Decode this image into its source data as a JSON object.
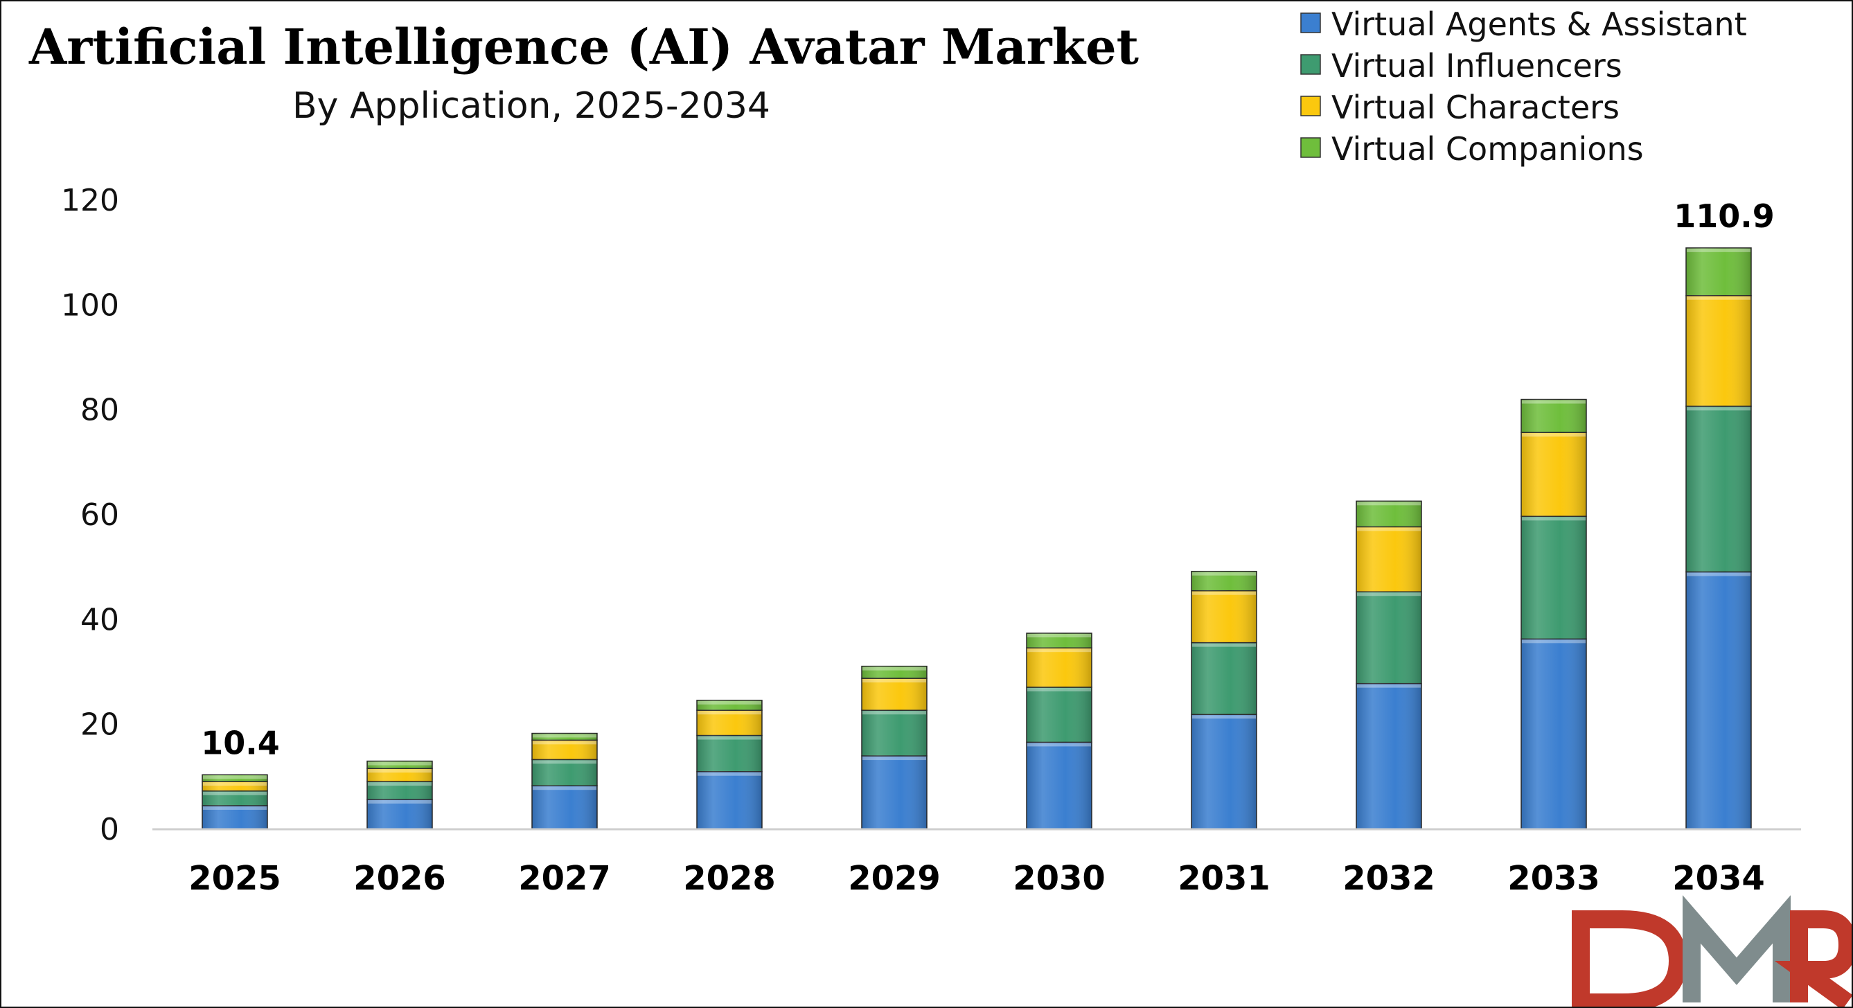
{
  "chart_data": {
    "type": "bar",
    "stacked": true,
    "title": "Artificial Intelligence (AI) Avatar Market",
    "subtitle": "By Application, 2025-2034",
    "xlabel": "",
    "ylabel": "",
    "categories": [
      "2025",
      "2026",
      "2027",
      "2028",
      "2029",
      "2030",
      "2031",
      "2032",
      "2033",
      "2034"
    ],
    "ylim": [
      0,
      120
    ],
    "yticks": [
      0,
      20,
      40,
      60,
      80,
      100,
      120
    ],
    "grid": false,
    "legend": "top-right",
    "series": [
      {
        "name": "Virtual Agents & Assistant",
        "color": "#3b7fd0",
        "values": [
          4.5,
          5.7,
          8.3,
          11.0,
          14.0,
          16.6,
          21.9,
          27.8,
          36.3,
          49.1
        ]
      },
      {
        "name": "Virtual Influencers",
        "color": "#3e9b70",
        "values": [
          2.8,
          3.4,
          5.0,
          6.9,
          8.7,
          10.5,
          13.7,
          17.5,
          23.4,
          31.6
        ]
      },
      {
        "name": "Virtual Characters",
        "color": "#fbc80e",
        "values": [
          1.8,
          2.5,
          3.7,
          4.8,
          6.1,
          7.5,
          9.9,
          12.4,
          16.0,
          21.1
        ]
      },
      {
        "name": "Virtual Companions",
        "color": "#6fbe3c",
        "values": [
          1.3,
          1.4,
          1.3,
          1.9,
          2.3,
          2.8,
          3.7,
          4.9,
          6.3,
          9.1
        ]
      }
    ],
    "data_labels": [
      {
        "category": "2025",
        "text": "10.4"
      },
      {
        "category": "2034",
        "text": "110.9"
      }
    ]
  },
  "logo": {
    "text": "DMR",
    "colors": [
      "#c0392b",
      "#7f8c8d"
    ]
  }
}
